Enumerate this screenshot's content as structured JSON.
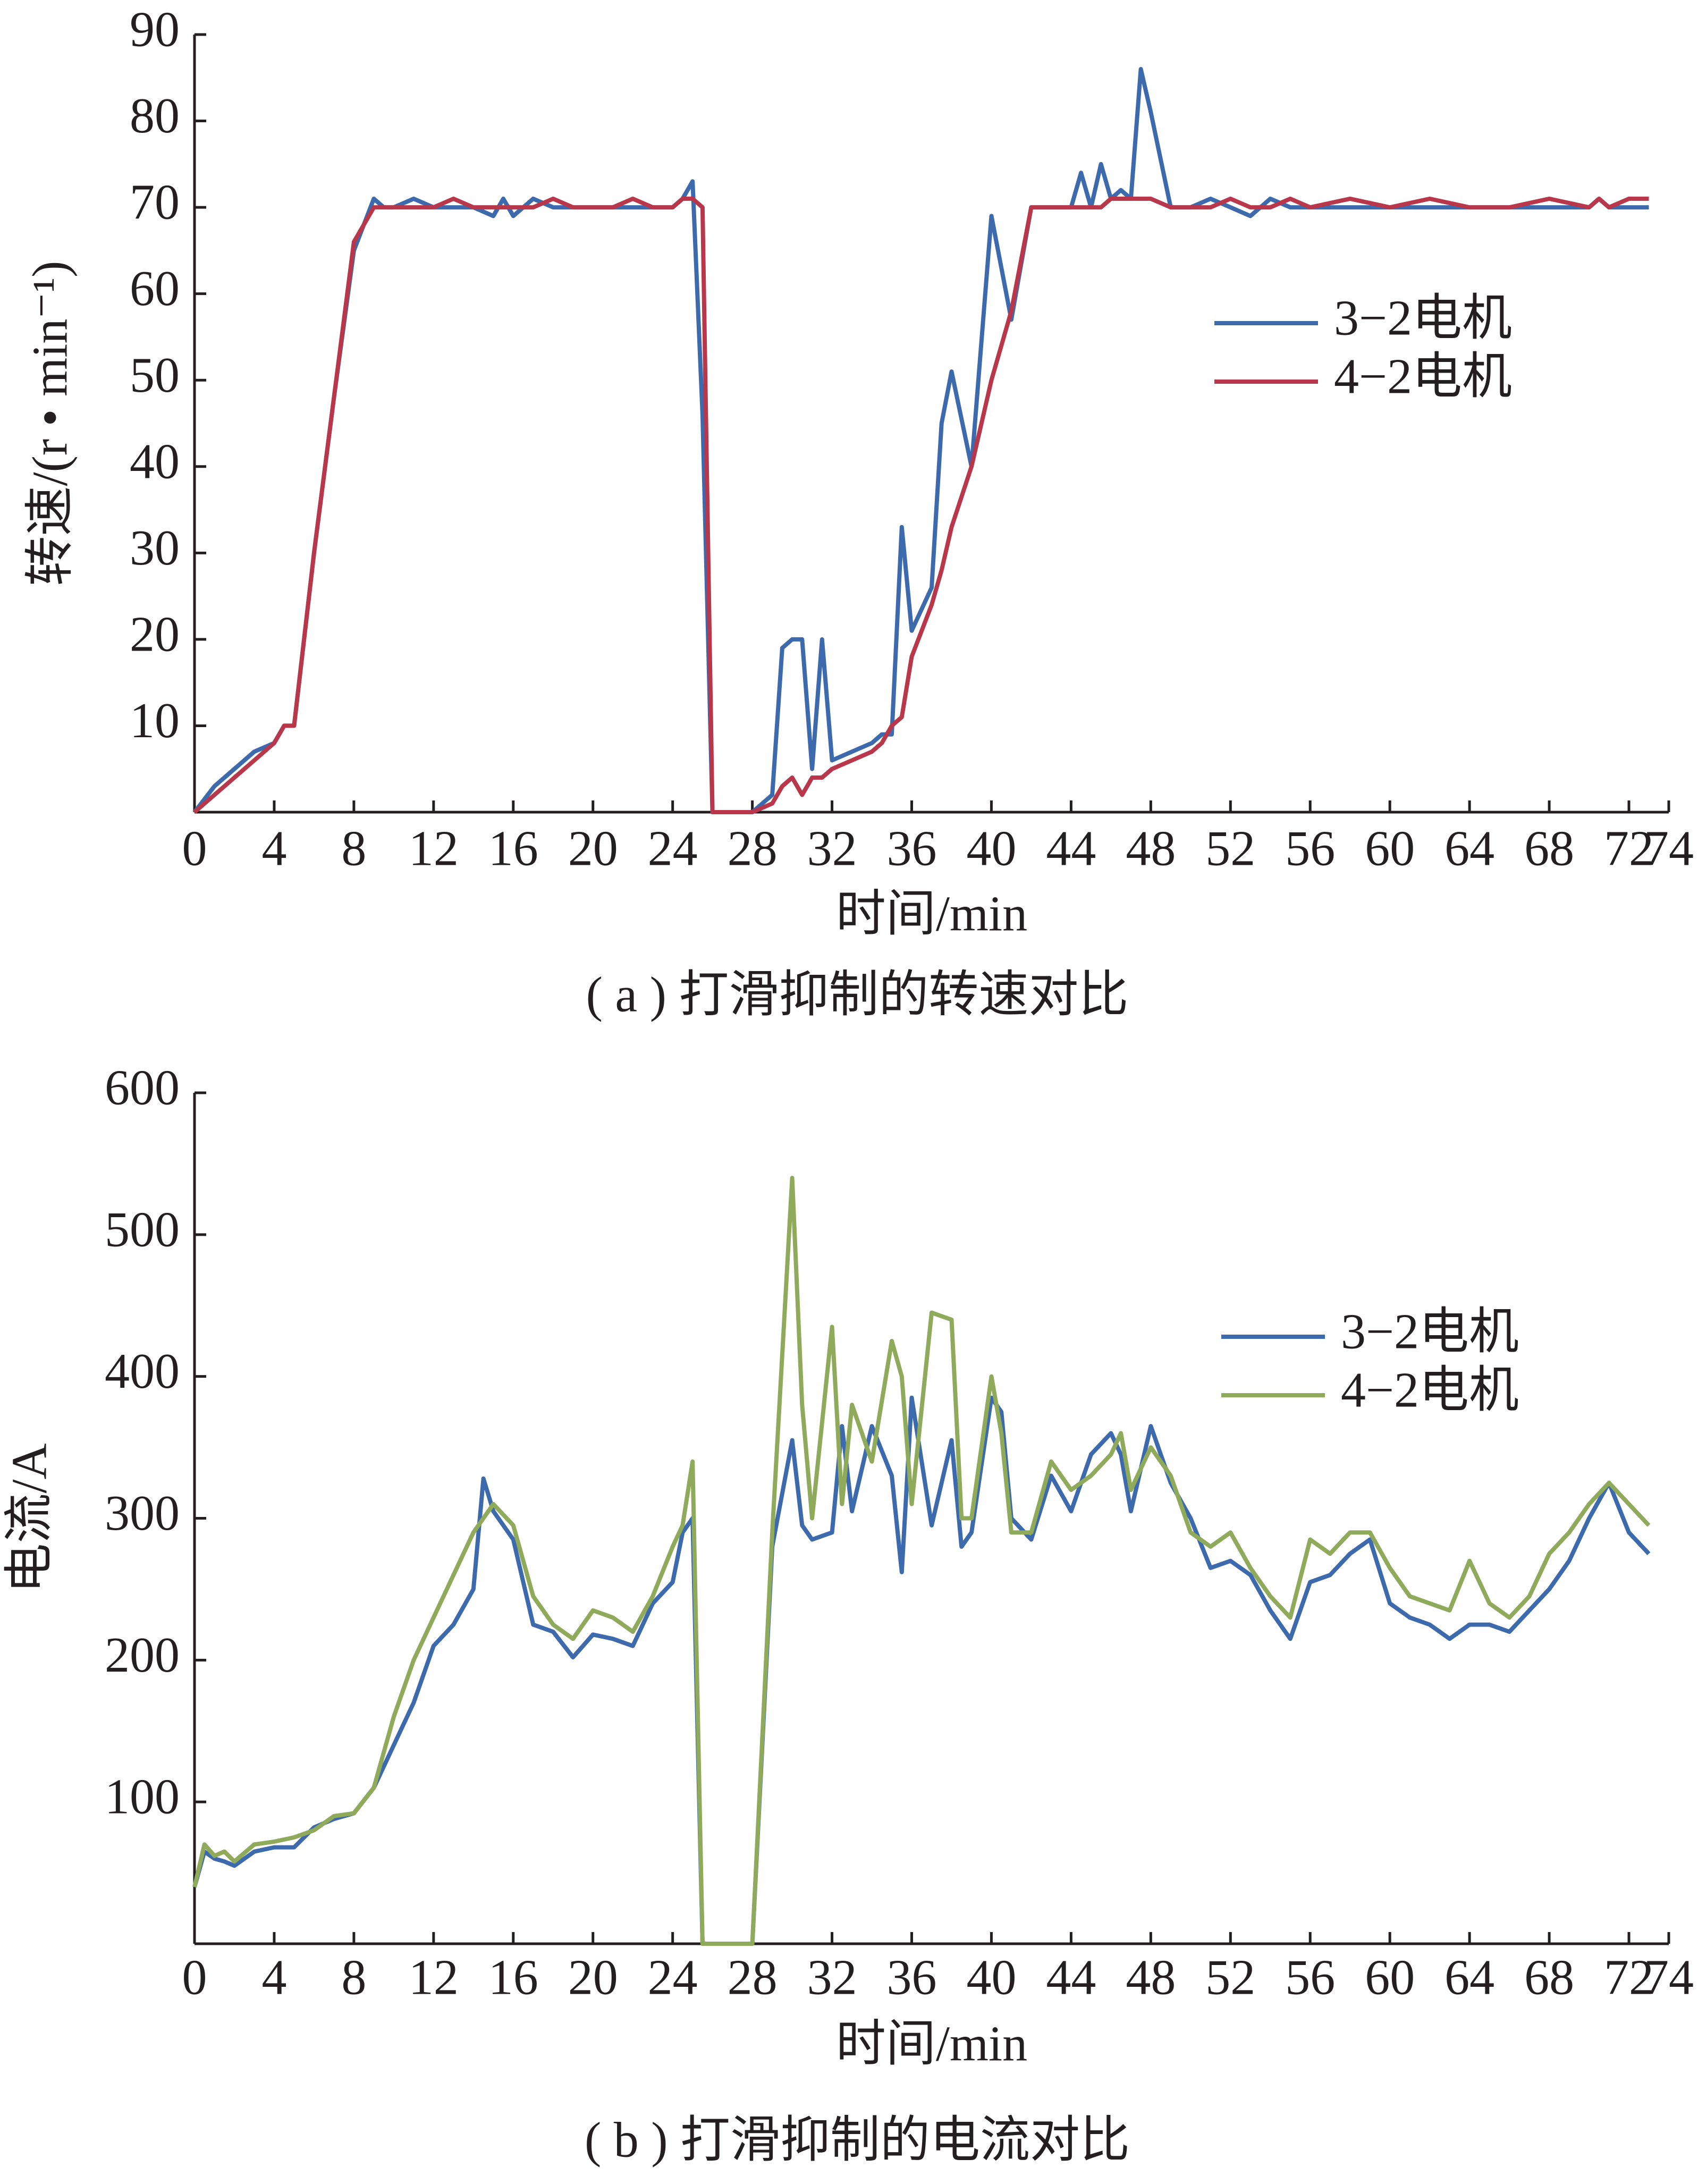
{
  "chart_data": [
    {
      "type": "line",
      "caption": "( a ) 打滑抑制的转速对比",
      "xlabel": "时间/min",
      "ylabel": "转速/(r • min⁻¹)",
      "x": [
        0,
        1,
        2,
        3,
        4,
        4.5,
        5,
        6,
        7,
        8,
        9,
        9.5,
        10,
        11,
        12,
        13,
        14,
        15,
        15.5,
        16,
        17,
        18,
        19,
        20,
        21,
        22,
        23,
        24,
        24.5,
        25,
        25.5,
        26,
        27,
        28,
        29,
        29.5,
        30,
        30.5,
        31,
        31.5,
        32,
        33,
        34,
        34.5,
        35,
        35.5,
        36,
        37,
        37.5,
        38,
        39,
        40,
        41,
        42,
        43,
        44,
        44.5,
        45,
        45.5,
        46,
        46.5,
        47,
        47.5,
        48,
        49,
        50,
        51,
        52,
        53,
        54,
        55,
        56,
        58,
        60,
        62,
        64,
        66,
        68,
        70,
        70.5,
        71,
        72,
        73
      ],
      "series": [
        {
          "name": "3−2电机",
          "color": "#3d6aad",
          "values": [
            0,
            3,
            5,
            7,
            8,
            10,
            10,
            30,
            48,
            65,
            71,
            70,
            70,
            71,
            70,
            70,
            70,
            69,
            71,
            69,
            71,
            70,
            70,
            70,
            70,
            70,
            70,
            70,
            71,
            73,
            46,
            0,
            0,
            0,
            2,
            19,
            20,
            20,
            5,
            20,
            6,
            7,
            8,
            9,
            9,
            33,
            21,
            26,
            45,
            51,
            40,
            69,
            57,
            70,
            70,
            70,
            74,
            70,
            75,
            71,
            72,
            71,
            86,
            81,
            70,
            70,
            71,
            70,
            69,
            71,
            70,
            70,
            70,
            70,
            70,
            70,
            70,
            70,
            70,
            71,
            70,
            70,
            70
          ]
        },
        {
          "name": "4−2电机",
          "color": "#b8374a",
          "values": [
            0,
            2,
            4,
            6,
            8,
            10,
            10,
            30,
            48,
            66,
            70,
            70,
            70,
            70,
            70,
            71,
            70,
            70,
            70,
            70,
            70,
            71,
            70,
            70,
            70,
            71,
            70,
            70,
            71,
            71,
            70,
            0,
            0,
            0,
            1,
            3,
            4,
            2,
            4,
            4,
            5,
            6,
            7,
            8,
            10,
            11,
            18,
            24,
            28,
            33,
            40,
            50,
            58,
            70,
            70,
            70,
            70,
            70,
            70,
            71,
            71,
            71,
            71,
            71,
            70,
            70,
            70,
            71,
            70,
            70,
            71,
            70,
            71,
            70,
            71,
            70,
            70,
            71,
            70,
            71,
            70,
            71,
            71
          ]
        }
      ],
      "xlim": [
        0,
        74
      ],
      "xticks": [
        0,
        4,
        8,
        12,
        16,
        20,
        24,
        28,
        32,
        36,
        40,
        44,
        48,
        52,
        56,
        60,
        64,
        68,
        72,
        74
      ],
      "ylim": [
        0,
        90
      ],
      "yticks": [
        10,
        20,
        30,
        40,
        50,
        60,
        70,
        80,
        90
      ],
      "legend": "right"
    },
    {
      "type": "line",
      "caption": "( b ) 打滑抑制的电流对比",
      "xlabel": "时间/min",
      "ylabel": "电流/A",
      "x": [
        0,
        0.5,
        1,
        1.5,
        2,
        3,
        4,
        5,
        6,
        7,
        8,
        9,
        10,
        11,
        12,
        13,
        14,
        14.5,
        15,
        16,
        17,
        18,
        19,
        20,
        21,
        22,
        23,
        24,
        24.5,
        25,
        25.5,
        26,
        27,
        28,
        29,
        30,
        30.5,
        31,
        32,
        32.5,
        33,
        34,
        35,
        35.5,
        36,
        37,
        38,
        38.5,
        39,
        40,
        40.5,
        41,
        42,
        43,
        44,
        45,
        46,
        46.5,
        47,
        48,
        49,
        50,
        51,
        52,
        53,
        54,
        55,
        56,
        57,
        58,
        59,
        60,
        61,
        62,
        63,
        64,
        65,
        66,
        67,
        68,
        69,
        70,
        71,
        72,
        73
      ],
      "series": [
        {
          "name": "3−2电机",
          "color": "#3d6aad",
          "values": [
            40,
            65,
            60,
            58,
            55,
            65,
            68,
            68,
            82,
            88,
            92,
            110,
            140,
            170,
            210,
            225,
            250,
            328,
            305,
            285,
            225,
            220,
            202,
            218,
            215,
            210,
            240,
            255,
            290,
            300,
            0,
            0,
            0,
            0,
            280,
            355,
            295,
            285,
            290,
            365,
            305,
            365,
            330,
            262,
            385,
            295,
            355,
            280,
            290,
            385,
            375,
            300,
            285,
            330,
            305,
            345,
            360,
            345,
            305,
            365,
            325,
            300,
            265,
            270,
            260,
            235,
            215,
            255,
            260,
            275,
            285,
            240,
            230,
            225,
            215,
            225,
            225,
            220,
            235,
            250,
            270,
            300,
            325,
            290,
            275
          ]
        },
        {
          "name": "4−2电机",
          "color": "#8faa5a",
          "values": [
            40,
            70,
            62,
            65,
            58,
            70,
            72,
            75,
            80,
            90,
            92,
            110,
            160,
            200,
            230,
            260,
            290,
            300,
            310,
            295,
            245,
            225,
            215,
            235,
            230,
            220,
            245,
            280,
            295,
            340,
            0,
            0,
            0,
            0,
            290,
            540,
            380,
            300,
            435,
            310,
            380,
            340,
            425,
            400,
            310,
            445,
            440,
            300,
            300,
            400,
            360,
            290,
            290,
            340,
            320,
            330,
            345,
            360,
            320,
            350,
            330,
            290,
            280,
            290,
            265,
            245,
            230,
            285,
            275,
            290,
            290,
            265,
            245,
            240,
            235,
            270,
            240,
            230,
            245,
            275,
            290,
            310,
            325,
            310,
            295
          ]
        }
      ],
      "xlim": [
        0,
        74
      ],
      "xticks": [
        0,
        4,
        8,
        12,
        16,
        20,
        24,
        28,
        32,
        36,
        40,
        44,
        48,
        52,
        56,
        60,
        64,
        68,
        72,
        74
      ],
      "ylim": [
        0,
        600
      ],
      "yticks": [
        100,
        200,
        300,
        400,
        500,
        600
      ],
      "legend": "right"
    }
  ]
}
